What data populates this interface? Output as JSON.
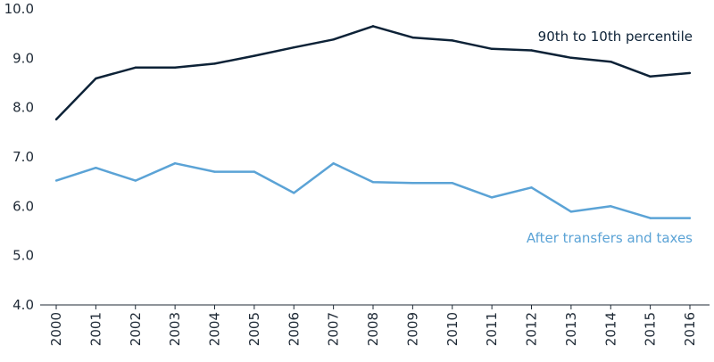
{
  "chart_data": {
    "type": "line",
    "title": "",
    "xlabel": "",
    "ylabel": "",
    "ylim": [
      4.0,
      10.0
    ],
    "yticks": [
      "4.0",
      "5.0",
      "6.0",
      "7.0",
      "8.0",
      "9.0",
      "10.0"
    ],
    "categories": [
      "2000",
      "2001",
      "2002",
      "2003",
      "2004",
      "2005",
      "2006",
      "2007",
      "2008",
      "2009",
      "2010",
      "2011",
      "2012",
      "2013",
      "2014",
      "2015",
      "2016"
    ],
    "grid": false,
    "series": [
      {
        "name": "90th to 10th percentile",
        "color": "#0d2237",
        "values": [
          7.76,
          8.59,
          8.81,
          8.81,
          8.89,
          9.05,
          9.22,
          9.38,
          9.65,
          9.42,
          9.36,
          9.19,
          9.16,
          9.01,
          8.93,
          8.63,
          8.7
        ]
      },
      {
        "name": "After transfers and taxes",
        "color": "#5ba3d6",
        "values": [
          6.52,
          6.78,
          6.52,
          6.87,
          6.7,
          6.7,
          6.27,
          6.87,
          6.49,
          6.47,
          6.47,
          6.18,
          6.38,
          5.89,
          6.0,
          5.76,
          5.76
        ]
      }
    ]
  }
}
